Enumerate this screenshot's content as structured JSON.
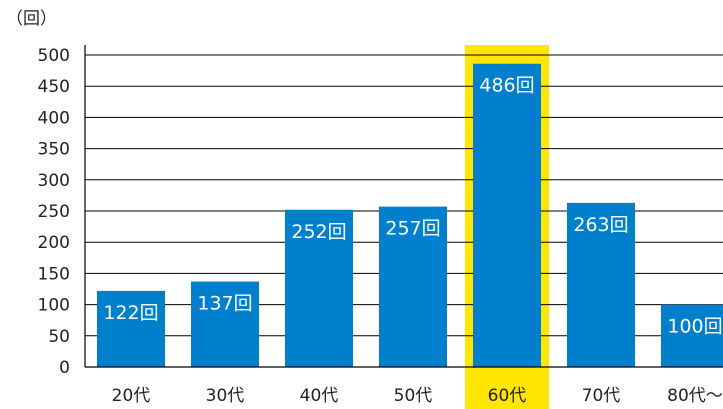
{
  "chart_data": {
    "type": "bar",
    "y_unit_label": "（回）",
    "categories": [
      "20代",
      "30代",
      "40代",
      "50代",
      "60代",
      "70代",
      "80代〜"
    ],
    "values": [
      122,
      137,
      252,
      257,
      486,
      263,
      100
    ],
    "data_labels": [
      "122回",
      "137回",
      "252回",
      "257回",
      "486回",
      "263回",
      "100回"
    ],
    "y_ticks": [
      "0",
      "50",
      "100",
      "150",
      "200",
      "250",
      "300",
      "350",
      "400",
      "450",
      "500"
    ],
    "ylim": [
      0,
      500
    ],
    "grid": true,
    "highlight_category": "60代",
    "bar_color": "#0080cc",
    "highlight_color": "#ffe600",
    "title": "",
    "xlabel": "",
    "ylabel": ""
  }
}
